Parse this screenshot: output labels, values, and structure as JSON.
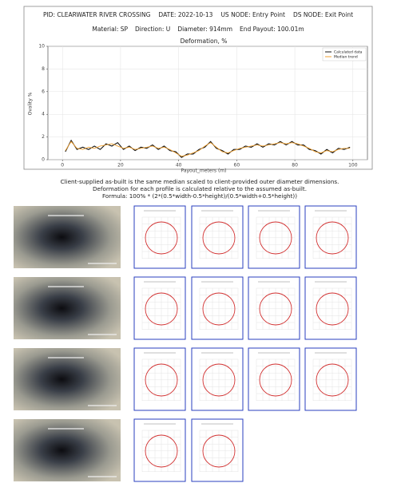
{
  "header": {
    "pid": "PID: CLEARWATER RIVER CROSSING",
    "date": "DATE: 2022-10-13",
    "us_node": "US NODE: Entry Point",
    "ds_node": "DS NODE: Exit Point",
    "material": "Material: SP",
    "direction": "Direction: U",
    "diameter": "Diameter: 914mm",
    "end_payout": "End Payout: 100.01m"
  },
  "notes": [
    "Client-supplied as-built is the same median scaled to client-provided outer diameter dimensions.",
    "Deformation for each profile is calculated relative to the assumed as-built.",
    "Formula: 100% * (2*(0.5*width-0.5*height)/(0.5*width+0.5*height))"
  ],
  "chart_data": {
    "type": "line",
    "title": "Deformation, %",
    "x_label": "Payout_meters (m)",
    "y_label": "Ovality %",
    "x": [
      1,
      3,
      5,
      7,
      9,
      11,
      13,
      15,
      17,
      19,
      21,
      23,
      25,
      27,
      29,
      31,
      33,
      35,
      37,
      39,
      41,
      43,
      45,
      47,
      49,
      51,
      53,
      55,
      57,
      59,
      61,
      63,
      65,
      67,
      69,
      71,
      73,
      75,
      77,
      79,
      81,
      83,
      85,
      87,
      89,
      91,
      93,
      95,
      97,
      99
    ],
    "series": [
      {
        "name": "Calculated data",
        "color": "#111111",
        "values": [
          0.7,
          1.7,
          0.9,
          1.1,
          0.9,
          1.2,
          0.9,
          1.4,
          1.2,
          1.5,
          0.9,
          1.2,
          0.8,
          1.1,
          1.0,
          1.3,
          0.9,
          1.2,
          0.8,
          0.7,
          0.2,
          0.5,
          0.5,
          0.9,
          1.1,
          1.6,
          1.0,
          0.8,
          0.5,
          0.9,
          0.9,
          1.2,
          1.1,
          1.4,
          1.1,
          1.4,
          1.3,
          1.6,
          1.3,
          1.6,
          1.3,
          1.3,
          0.9,
          0.8,
          0.5,
          0.9,
          0.6,
          1.0,
          0.9,
          1.1
        ]
      },
      {
        "name": "Median trend",
        "color": "#f0a030",
        "values": [
          0.8,
          1.6,
          1.0,
          0.9,
          1.1,
          1.0,
          1.2,
          1.3,
          1.4,
          1.2,
          1.0,
          1.1,
          0.9,
          1.0,
          1.1,
          1.2,
          1.0,
          1.1,
          0.9,
          0.6,
          0.3,
          0.4,
          0.6,
          0.8,
          1.2,
          1.5,
          1.1,
          0.7,
          0.6,
          0.8,
          1.0,
          1.1,
          1.2,
          1.3,
          1.2,
          1.3,
          1.4,
          1.5,
          1.4,
          1.5,
          1.4,
          1.2,
          1.0,
          0.7,
          0.6,
          0.8,
          0.7,
          0.9,
          1.0,
          1.0
        ]
      }
    ],
    "xlim": [
      -5,
      105
    ],
    "xticks": [
      0,
      20,
      40,
      60,
      80,
      100
    ],
    "ylim": [
      0,
      10
    ],
    "yticks": [
      0,
      2,
      4,
      6,
      8,
      10
    ],
    "grid": true,
    "legend": "upper right"
  }
}
